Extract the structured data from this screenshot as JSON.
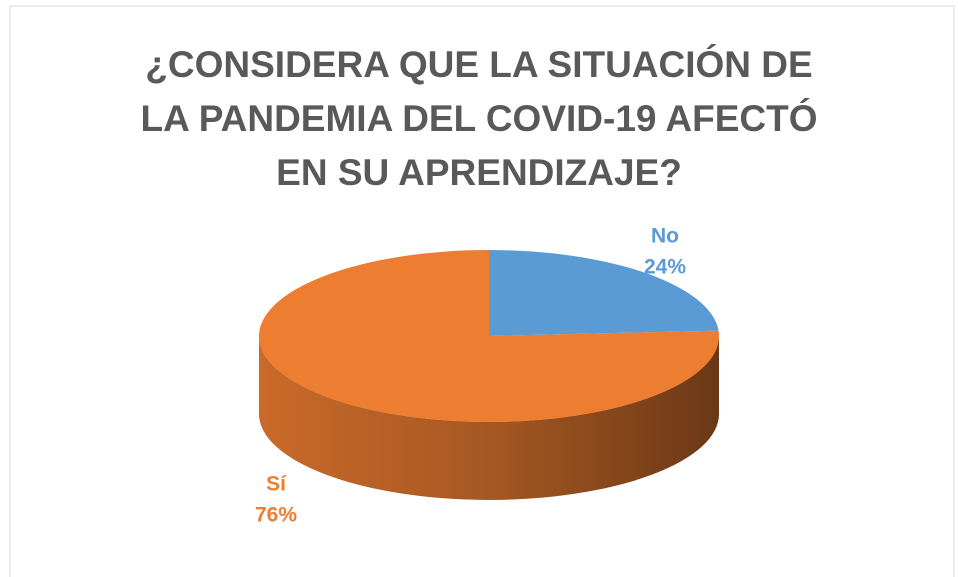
{
  "chart_data": {
    "type": "pie3d",
    "title": "¿CONSIDERA QUE LA SITUACIÓN DE LA PANDEMIA DEL COVID-19 AFECTÓ EN SU APRENDIZAJE?",
    "categories": [
      "No",
      "Sí"
    ],
    "values": [
      24,
      76
    ],
    "value_labels": [
      "24%",
      "76%"
    ],
    "colors": [
      "#5b9bd5",
      "#ed7d31"
    ]
  }
}
